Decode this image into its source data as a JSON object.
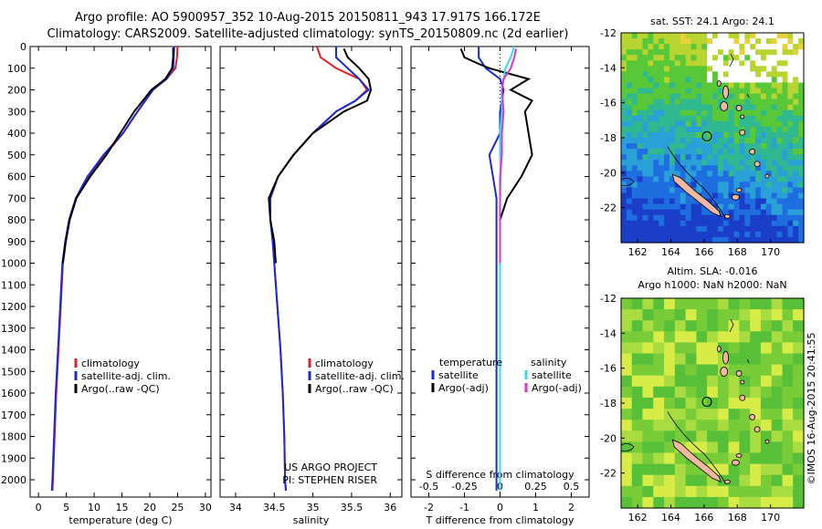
{
  "header": {
    "line1": "Argo profile: AO 5900957_352 10-Aug-2015 20150811_943 17.917S 166.172E",
    "line2": "Climatology: CARS2009. Satellite-adjusted climatology: synTS_20150809.nc (2d earlier)"
  },
  "colors": {
    "climatology": "#e02020",
    "satellite": "#1a2ad8",
    "argo": "#000000",
    "sal_satellite": "#30e0e8",
    "sal_argo": "#e030e0",
    "land": "#f0b8a0"
  },
  "chart_data": [
    {
      "type": "line",
      "id": "temperature",
      "xlabel": "temperature (deg C)",
      "xlim": [
        -1.5,
        31
      ],
      "xticks": [
        0,
        5,
        10,
        15,
        20,
        25,
        30
      ],
      "ylim": [
        2080,
        0
      ],
      "yticks": [
        0,
        100,
        200,
        300,
        400,
        500,
        600,
        700,
        800,
        900,
        1000,
        1100,
        1200,
        1300,
        1400,
        1500,
        1600,
        1700,
        1800,
        1900,
        2000
      ],
      "legend": [
        "climatology",
        "satellite-adj. clim.",
        "Argo(..raw -QC)"
      ],
      "series": [
        {
          "name": "climatology",
          "color": "#e02020",
          "points": [
            [
              25.0,
              0
            ],
            [
              24.9,
              50
            ],
            [
              24.6,
              100
            ],
            [
              23.0,
              150
            ],
            [
              20.5,
              200
            ],
            [
              17.8,
              300
            ],
            [
              15.2,
              400
            ],
            [
              12.0,
              500
            ],
            [
              9.0,
              600
            ],
            [
              6.8,
              700
            ],
            [
              5.6,
              800
            ],
            [
              4.9,
              900
            ],
            [
              4.4,
              1000
            ],
            [
              4.0,
              1200
            ],
            [
              3.6,
              1400
            ],
            [
              3.2,
              1600
            ],
            [
              2.9,
              1800
            ],
            [
              2.6,
              2000
            ],
            [
              2.5,
              2050
            ]
          ]
        },
        {
          "name": "satellite-adj. clim.",
          "color": "#1a2ad8",
          "points": [
            [
              24.4,
              0
            ],
            [
              24.3,
              50
            ],
            [
              24.2,
              100
            ],
            [
              23.0,
              150
            ],
            [
              20.6,
              200
            ],
            [
              17.8,
              300
            ],
            [
              15.2,
              400
            ],
            [
              11.7,
              500
            ],
            [
              8.8,
              600
            ],
            [
              6.7,
              700
            ],
            [
              5.5,
              800
            ],
            [
              4.8,
              900
            ],
            [
              4.3,
              1000
            ],
            [
              3.9,
              1200
            ],
            [
              3.5,
              1400
            ],
            [
              3.1,
              1600
            ],
            [
              2.8,
              1800
            ],
            [
              2.5,
              2000
            ],
            [
              2.4,
              2050
            ]
          ]
        },
        {
          "name": "Argo(..raw -QC)",
          "color": "#000000",
          "points": [
            [
              24.2,
              5
            ],
            [
              24.2,
              50
            ],
            [
              24.0,
              100
            ],
            [
              22.8,
              150
            ],
            [
              20.3,
              200
            ],
            [
              17.2,
              300
            ],
            [
              14.7,
              400
            ],
            [
              12.2,
              500
            ],
            [
              9.3,
              600
            ],
            [
              6.8,
              700
            ],
            [
              5.6,
              800
            ],
            [
              4.9,
              900
            ],
            [
              4.4,
              1000
            ]
          ]
        }
      ]
    },
    {
      "type": "line",
      "id": "salinity",
      "xlabel": "salinity",
      "xlim": [
        33.8,
        36.15
      ],
      "xticks": [
        34,
        34.5,
        35,
        35.5,
        36
      ],
      "ylim": [
        2080,
        0
      ],
      "legend": [
        "climatology",
        "satellite-adj. clim.",
        "Argo(..raw -QC)"
      ],
      "series": [
        {
          "name": "climatology",
          "color": "#e02020",
          "points": [
            [
              35.05,
              0
            ],
            [
              35.1,
              50
            ],
            [
              35.3,
              100
            ],
            [
              35.6,
              150
            ],
            [
              35.7,
              200
            ],
            [
              35.55,
              250
            ],
            [
              35.3,
              300
            ],
            [
              35.0,
              400
            ],
            [
              34.75,
              500
            ],
            [
              34.55,
              600
            ],
            [
              34.45,
              700
            ],
            [
              34.45,
              800
            ],
            [
              34.48,
              900
            ],
            [
              34.5,
              1000
            ],
            [
              34.54,
              1200
            ],
            [
              34.58,
              1400
            ],
            [
              34.61,
              1600
            ],
            [
              34.63,
              1800
            ],
            [
              34.64,
              2000
            ],
            [
              34.65,
              2050
            ]
          ]
        },
        {
          "name": "satellite-adj. clim.",
          "color": "#1a2ad8",
          "points": [
            [
              35.3,
              0
            ],
            [
              35.3,
              50
            ],
            [
              35.45,
              100
            ],
            [
              35.6,
              150
            ],
            [
              35.72,
              200
            ],
            [
              35.55,
              250
            ],
            [
              35.3,
              300
            ],
            [
              35.0,
              400
            ],
            [
              34.75,
              500
            ],
            [
              34.55,
              600
            ],
            [
              34.45,
              700
            ],
            [
              34.45,
              800
            ],
            [
              34.48,
              900
            ],
            [
              34.5,
              1000
            ],
            [
              34.54,
              1200
            ],
            [
              34.58,
              1400
            ],
            [
              34.61,
              1600
            ],
            [
              34.63,
              1800
            ],
            [
              34.64,
              2000
            ],
            [
              34.65,
              2050
            ]
          ]
        },
        {
          "name": "Argo(..raw -QC)",
          "color": "#000000",
          "points": [
            [
              35.4,
              10
            ],
            [
              35.45,
              50
            ],
            [
              35.6,
              100
            ],
            [
              35.72,
              150
            ],
            [
              35.75,
              200
            ],
            [
              35.7,
              250
            ],
            [
              35.4,
              300
            ],
            [
              35.0,
              400
            ],
            [
              34.75,
              500
            ],
            [
              34.55,
              600
            ],
            [
              34.43,
              700
            ],
            [
              34.45,
              800
            ],
            [
              34.5,
              900
            ],
            [
              34.52,
              1000
            ]
          ]
        }
      ]
    },
    {
      "type": "line",
      "id": "difference",
      "title": "S difference from climatology",
      "xlabel": "T difference from climatology",
      "xlim": [
        -2.5,
        2.5
      ],
      "xticks": [
        -2,
        -1,
        0,
        1,
        2
      ],
      "secondary_xticks": [
        "-0.5",
        "-0.25",
        "0",
        "0.25",
        "0.5"
      ],
      "ylim": [
        2080,
        0
      ],
      "legend_groups": [
        {
          "title": "temperature",
          "items": [
            "satellite",
            "Argo(-adj)"
          ]
        },
        {
          "title": "salinity",
          "items": [
            "satellite",
            "Argo(-adj)"
          ]
        }
      ],
      "series": [
        {
          "name": "temperature satellite",
          "color": "#1a2ad8",
          "points": [
            [
              -0.6,
              0
            ],
            [
              -0.6,
              50
            ],
            [
              -0.4,
              100
            ],
            [
              0.0,
              150
            ],
            [
              0.1,
              200
            ],
            [
              0.0,
              300
            ],
            [
              0.0,
              400
            ],
            [
              -0.3,
              500
            ],
            [
              -0.2,
              600
            ],
            [
              -0.1,
              700
            ],
            [
              -0.1,
              800
            ],
            [
              -0.1,
              900
            ],
            [
              -0.1,
              1000
            ],
            [
              -0.1,
              1500
            ],
            [
              -0.1,
              2000
            ],
            [
              -0.1,
              2050
            ]
          ]
        },
        {
          "name": "temperature Argo(-adj)",
          "color": "#000000",
          "points": [
            [
              -1.1,
              10
            ],
            [
              -1.0,
              50
            ],
            [
              -0.6,
              80
            ],
            [
              -0.3,
              100
            ],
            [
              0.8,
              150
            ],
            [
              0.3,
              200
            ],
            [
              0.9,
              250
            ],
            [
              0.7,
              300
            ],
            [
              0.8,
              400
            ],
            [
              0.9,
              500
            ],
            [
              0.6,
              600
            ],
            [
              0.2,
              700
            ],
            [
              0.0,
              800
            ],
            [
              0.0,
              900
            ],
            [
              0.0,
              1000
            ]
          ]
        },
        {
          "name": "salinity satellite",
          "color": "#30e0e8",
          "points": [
            [
              0.4,
              0
            ],
            [
              0.3,
              50
            ],
            [
              0.15,
              100
            ],
            [
              0.1,
              150
            ],
            [
              0.05,
              200
            ],
            [
              0.05,
              300
            ],
            [
              0.0,
              400
            ],
            [
              0.0,
              500
            ],
            [
              0.02,
              600
            ],
            [
              0.0,
              700
            ],
            [
              0.0,
              800
            ],
            [
              0.0,
              900
            ],
            [
              0.0,
              1000
            ],
            [
              0.0,
              1500
            ],
            [
              0.0,
              2000
            ],
            [
              0.0,
              2050
            ]
          ]
        },
        {
          "name": "salinity Argo(-adj)",
          "color": "#e030e0",
          "points": [
            [
              0.45,
              10
            ],
            [
              0.4,
              50
            ],
            [
              0.3,
              100
            ],
            [
              0.1,
              150
            ],
            [
              0.05,
              200
            ],
            [
              0.1,
              300
            ],
            [
              0.05,
              400
            ],
            [
              0.05,
              500
            ],
            [
              0.0,
              600
            ],
            [
              0.0,
              700
            ],
            [
              0.0,
              800
            ],
            [
              0.0,
              900
            ],
            [
              0.0,
              1000
            ]
          ]
        }
      ]
    },
    {
      "type": "heatmap",
      "id": "sst_map",
      "title": "sat. SST: 24.1 Argo: 24.1",
      "xlim": [
        161,
        172
      ],
      "ylim": [
        -24,
        -12
      ],
      "xticks": [
        162,
        164,
        166,
        168,
        170
      ],
      "yticks": [
        -12,
        -14,
        -16,
        -18,
        -20,
        -22
      ]
    },
    {
      "type": "heatmap",
      "id": "sla_map",
      "title_line1": "Altim. SLA: -0.016",
      "title_line2": "Argo h1000: NaN h2000: NaN",
      "xlim": [
        161,
        172
      ],
      "ylim": [
        -24,
        -12
      ],
      "xticks": [
        162,
        164,
        166,
        168,
        170
      ],
      "yticks": [
        -12,
        -14,
        -16,
        -18,
        -20,
        -22
      ]
    }
  ],
  "footer": {
    "project": "US ARGO PROJECT",
    "pi": "PI: STEPHEN RISER",
    "stamp": "©IMOS 16-Aug-2015 20:41:55"
  }
}
